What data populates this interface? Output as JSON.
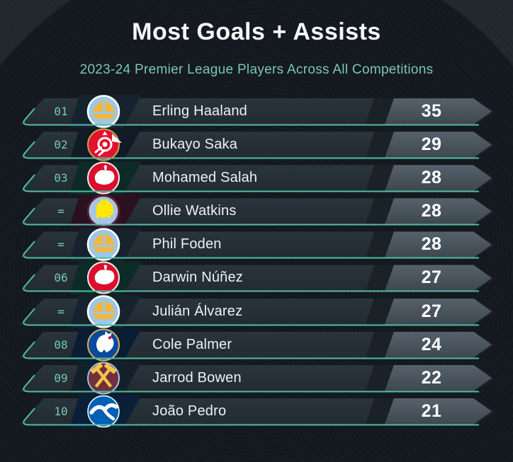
{
  "header": {
    "title": "Most Goals + Assists",
    "subtitle": "2023-24 Premier League Players Across All Competitions"
  },
  "colors": {
    "background": "#12181d",
    "row_background": "#262f37",
    "value_chevron": "#4a545e",
    "accent_teal_line": "#53bda4",
    "rank_text": "#74cab1",
    "subtitle_text": "#7cc7b1",
    "player_text": "#eef1f3",
    "value_text": "#ffffff"
  },
  "rows": [
    {
      "rank": "01",
      "player": "Erling Haaland",
      "club": "manchester-city",
      "club_name": "Manchester City",
      "value": "35"
    },
    {
      "rank": "02",
      "player": "Bukayo Saka",
      "club": "arsenal",
      "club_name": "Arsenal",
      "value": "29"
    },
    {
      "rank": "03",
      "player": "Mohamed Salah",
      "club": "liverpool",
      "club_name": "Liverpool",
      "value": "28"
    },
    {
      "rank": "=",
      "player": "Ollie Watkins",
      "club": "aston-villa",
      "club_name": "Aston Villa",
      "value": "28"
    },
    {
      "rank": "=",
      "player": "Phil Foden",
      "club": "manchester-city",
      "club_name": "Manchester City",
      "value": "28"
    },
    {
      "rank": "06",
      "player": "Darwin Núñez",
      "club": "liverpool",
      "club_name": "Liverpool",
      "value": "27"
    },
    {
      "rank": "=",
      "player": "Julián Álvarez",
      "club": "manchester-city",
      "club_name": "Manchester City",
      "value": "27"
    },
    {
      "rank": "08",
      "player": "Cole Palmer",
      "club": "chelsea",
      "club_name": "Chelsea",
      "value": "24"
    },
    {
      "rank": "09",
      "player": "Jarrod Bowen",
      "club": "west-ham",
      "club_name": "West Ham United",
      "value": "22"
    },
    {
      "rank": "10",
      "player": "João Pedro",
      "club": "brighton",
      "club_name": "Brighton",
      "value": "21"
    }
  ],
  "chart_data": {
    "type": "table",
    "title": "Most Goals + Assists",
    "subtitle": "2023-24 Premier League Players Across All Competitions",
    "columns": [
      "rank",
      "club",
      "player",
      "goals_plus_assists"
    ],
    "rows": [
      [
        "01",
        "Manchester City",
        "Erling Haaland",
        35
      ],
      [
        "02",
        "Arsenal",
        "Bukayo Saka",
        29
      ],
      [
        "03",
        "Liverpool",
        "Mohamed Salah",
        28
      ],
      [
        "=",
        "Aston Villa",
        "Ollie Watkins",
        28
      ],
      [
        "=",
        "Manchester City",
        "Phil Foden",
        28
      ],
      [
        "06",
        "Liverpool",
        "Darwin Núñez",
        27
      ],
      [
        "=",
        "Manchester City",
        "Julián Álvarez",
        27
      ],
      [
        "08",
        "Chelsea",
        "Cole Palmer",
        24
      ],
      [
        "09",
        "West Ham United",
        "Jarrod Bowen",
        22
      ],
      [
        "10",
        "Brighton",
        "João Pedro",
        21
      ]
    ]
  }
}
